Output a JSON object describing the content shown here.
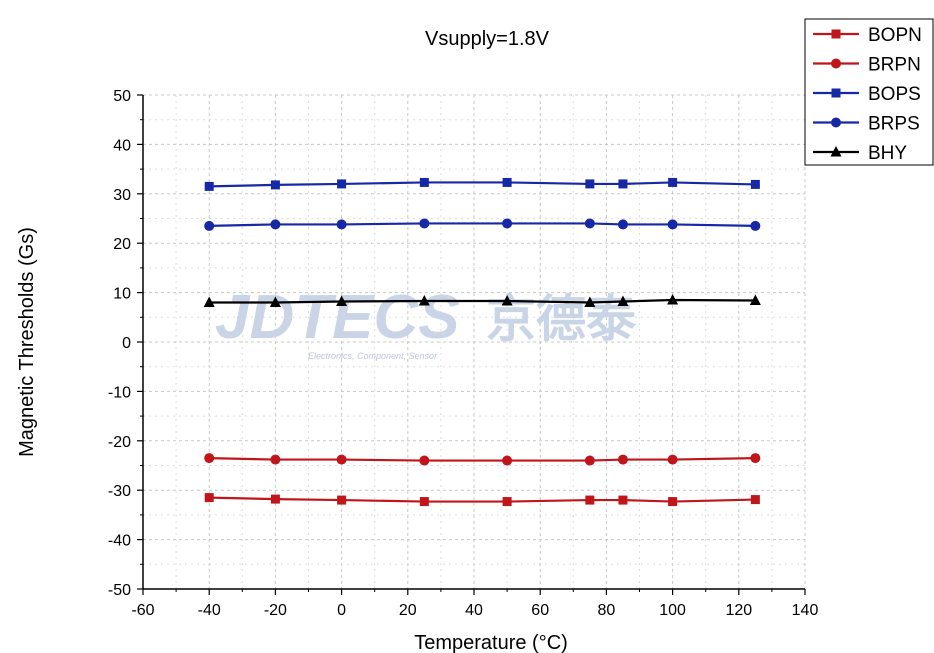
{
  "chart_data": {
    "type": "line",
    "title": "Vsupply=1.8V",
    "xlabel": "Temperature (°C)",
    "ylabel": "Magnetic Thresholds (Gs)",
    "xlim": [
      -60,
      140
    ],
    "ylim": [
      -50,
      50
    ],
    "x_ticks": [
      -60,
      -40,
      -20,
      0,
      20,
      40,
      60,
      80,
      100,
      120,
      140
    ],
    "y_ticks": [
      50,
      40,
      30,
      20,
      10,
      0,
      -10,
      -20,
      -30,
      -40,
      -50
    ],
    "x": [
      -40,
      -20,
      0,
      25,
      50,
      75,
      85,
      100,
      125
    ],
    "grid": true,
    "legend_position": "top-right",
    "series": [
      {
        "name": "BOPN",
        "marker": "square",
        "color": "#c0161b",
        "values": [
          -31.5,
          -31.8,
          -32.0,
          -32.3,
          -32.3,
          -32.0,
          -32.0,
          -32.3,
          -31.9
        ]
      },
      {
        "name": "BRPN",
        "marker": "circle",
        "color": "#c0161b",
        "values": [
          -23.5,
          -23.8,
          -23.8,
          -24.0,
          -24.0,
          -24.0,
          -23.8,
          -23.8,
          -23.5
        ]
      },
      {
        "name": "BOPS",
        "marker": "square",
        "color": "#1628a6",
        "values": [
          31.5,
          31.8,
          32.0,
          32.3,
          32.3,
          32.0,
          32.0,
          32.3,
          31.9
        ]
      },
      {
        "name": "BRPS",
        "marker": "circle",
        "color": "#1628a6",
        "values": [
          23.5,
          23.8,
          23.8,
          24.0,
          24.0,
          24.0,
          23.8,
          23.8,
          23.5
        ]
      },
      {
        "name": "BHY",
        "marker": "triangle",
        "color": "#000000",
        "values": [
          8.0,
          8.0,
          8.2,
          8.3,
          8.3,
          8.0,
          8.2,
          8.5,
          8.4
        ]
      }
    ]
  },
  "watermark": {
    "main": "JDTECS",
    "chinese": "京德泰",
    "sub": "Electronics, Component, Sensor"
  }
}
